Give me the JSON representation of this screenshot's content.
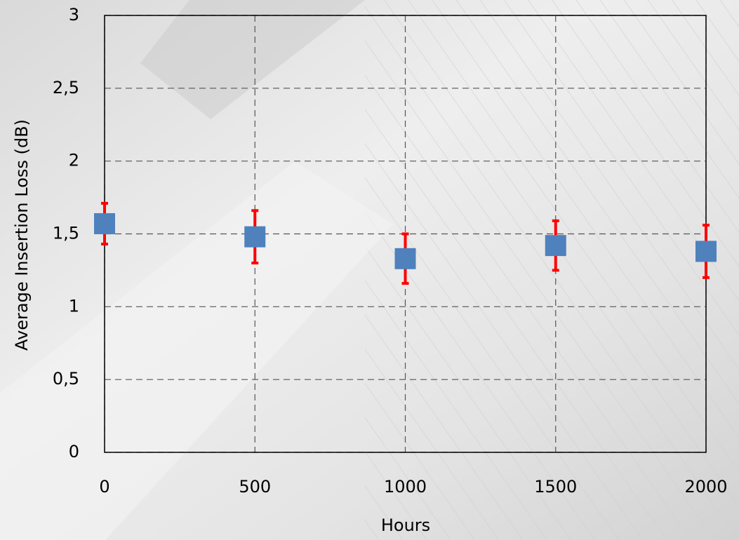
{
  "chart_data": {
    "type": "scatter",
    "x_label": "Hours",
    "y_label": "Average Insertion Loss (dB)",
    "x": [
      0,
      500,
      1000,
      1500,
      2000
    ],
    "series": [
      {
        "color": "#4f81bd",
        "error_color": "#ff0000",
        "values": [
          1.57,
          1.48,
          1.33,
          1.42,
          1.38
        ],
        "errors": [
          0.14,
          0.18,
          0.17,
          0.17,
          0.18
        ]
      }
    ],
    "xlim": [
      0,
      2000
    ],
    "xticks": [
      0,
      500,
      1000,
      1500,
      2000
    ],
    "ylim": [
      0,
      3
    ],
    "yticks": [
      0,
      {
        "value": 0.5,
        "label": "0,5"
      },
      1,
      {
        "value": 1.5,
        "label": "1,5"
      },
      2,
      {
        "value": 2.5,
        "label": "2,5"
      },
      3
    ],
    "grid": true
  }
}
